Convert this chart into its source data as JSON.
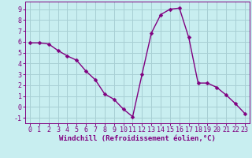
{
  "x": [
    0,
    1,
    2,
    3,
    4,
    5,
    6,
    7,
    8,
    9,
    10,
    11,
    12,
    13,
    14,
    15,
    16,
    17,
    18,
    19,
    20,
    21,
    22,
    23
  ],
  "y": [
    5.9,
    5.9,
    5.8,
    5.2,
    4.7,
    4.3,
    3.3,
    2.5,
    1.2,
    0.7,
    -0.2,
    -0.9,
    3.0,
    6.8,
    8.5,
    9.0,
    9.1,
    6.4,
    2.2,
    2.2,
    1.8,
    1.1,
    0.3,
    -0.6
  ],
  "line_color": "#800080",
  "marker": "D",
  "markersize": 2.5,
  "linewidth": 1.0,
  "bg_color": "#c8eef0",
  "grid_color": "#a8cfd4",
  "xlabel": "Windchill (Refroidissement éolien,°C)",
  "xlabel_fontsize": 6.5,
  "tick_fontsize": 6,
  "xlim": [
    -0.5,
    23.5
  ],
  "ylim": [
    -1.5,
    9.7
  ],
  "yticks": [
    -1,
    0,
    1,
    2,
    3,
    4,
    5,
    6,
    7,
    8,
    9
  ],
  "xticks": [
    0,
    1,
    2,
    3,
    4,
    5,
    6,
    7,
    8,
    9,
    10,
    11,
    12,
    13,
    14,
    15,
    16,
    17,
    18,
    19,
    20,
    21,
    22,
    23
  ]
}
